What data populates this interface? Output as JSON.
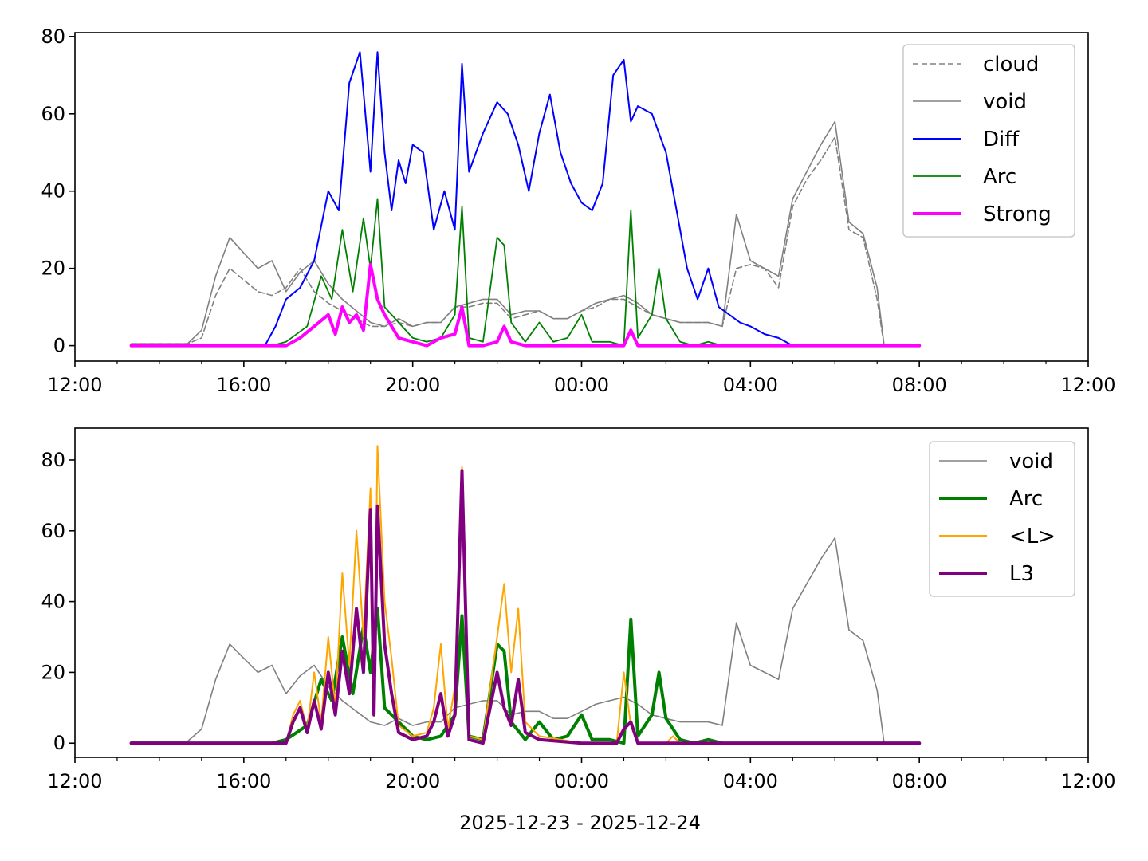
{
  "chart_data": [
    {
      "type": "line",
      "ylim": [
        -4,
        81
      ],
      "yticks": [
        0,
        20,
        40,
        60,
        80
      ],
      "xlim": [
        "2025-12-23 12:00",
        "2025-12-24 12:00"
      ],
      "xticks": [
        "12:00",
        "16:00",
        "20:00",
        "00:00",
        "04:00",
        "08:00",
        "12:00"
      ],
      "xlabel": "",
      "legend": "top-right",
      "series": [
        {
          "name": "cloud",
          "color": "#808080",
          "style": "dashed",
          "width": 1.6,
          "x": [
            "13:20",
            "14:00",
            "14:40",
            "15:00",
            "15:20",
            "15:40",
            "16:00",
            "16:20",
            "16:40",
            "17:00",
            "17:20",
            "17:40",
            "18:00",
            "18:20",
            "18:40",
            "19:00",
            "19:20",
            "19:40",
            "20:00",
            "20:20",
            "20:40",
            "21:00",
            "21:20",
            "21:40",
            "22:00",
            "22:20",
            "22:40",
            "23:00",
            "23:20",
            "23:40",
            "00:00",
            "00:20",
            "00:40",
            "01:00",
            "01:20",
            "01:40",
            "02:00",
            "02:20",
            "02:40",
            "03:00",
            "03:20",
            "03:40",
            "04:00",
            "04:20",
            "04:40",
            "05:00",
            "05:20",
            "05:40",
            "06:00",
            "06:20",
            "06:40",
            "07:00",
            "07:10",
            "07:30",
            "08:00"
          ],
          "y": [
            0.5,
            0.5,
            0.5,
            2,
            13,
            20,
            17,
            14,
            13,
            15,
            20,
            14,
            11,
            9,
            7,
            5,
            5,
            6,
            5,
            6,
            6,
            10,
            10,
            11,
            11,
            7,
            8,
            9,
            7,
            7,
            9,
            10,
            12,
            12,
            10,
            8,
            7,
            6,
            6,
            6,
            5,
            20,
            21,
            20,
            15,
            36,
            43,
            48,
            54,
            30,
            28,
            12,
            0,
            0,
            0
          ]
        },
        {
          "name": "void",
          "color": "#808080",
          "style": "solid",
          "width": 1.6,
          "x": [
            "13:20",
            "14:00",
            "14:40",
            "15:00",
            "15:20",
            "15:40",
            "16:00",
            "16:20",
            "16:40",
            "17:00",
            "17:20",
            "17:40",
            "18:00",
            "18:20",
            "18:40",
            "19:00",
            "19:20",
            "19:40",
            "20:00",
            "20:20",
            "20:40",
            "21:00",
            "21:20",
            "21:40",
            "22:00",
            "22:20",
            "22:40",
            "23:00",
            "23:20",
            "23:40",
            "00:00",
            "00:20",
            "00:40",
            "01:00",
            "01:20",
            "01:40",
            "02:00",
            "02:20",
            "02:40",
            "03:00",
            "03:20",
            "03:40",
            "04:00",
            "04:20",
            "04:40",
            "05:00",
            "05:20",
            "05:40",
            "06:00",
            "06:20",
            "06:40",
            "07:00",
            "07:10",
            "07:30",
            "08:00"
          ],
          "y": [
            0.5,
            0.5,
            0.5,
            4,
            18,
            28,
            24,
            20,
            22,
            14,
            19,
            22,
            16,
            12,
            9,
            6,
            5,
            7,
            5,
            6,
            6,
            10,
            11,
            12,
            12,
            8,
            9,
            9,
            7,
            7,
            9,
            11,
            12,
            13,
            11,
            8,
            7,
            6,
            6,
            6,
            5,
            34,
            22,
            20,
            18,
            38,
            45,
            52,
            58,
            32,
            29,
            15,
            0,
            0,
            0
          ]
        },
        {
          "name": "Diff",
          "color": "#0000ff",
          "style": "solid",
          "width": 2,
          "x": [
            "13:20",
            "16:00",
            "16:30",
            "16:45",
            "17:00",
            "17:20",
            "17:40",
            "18:00",
            "18:15",
            "18:30",
            "18:45",
            "19:00",
            "19:10",
            "19:20",
            "19:30",
            "19:40",
            "19:50",
            "20:00",
            "20:15",
            "20:30",
            "20:45",
            "21:00",
            "21:10",
            "21:20",
            "21:40",
            "22:00",
            "22:15",
            "22:30",
            "22:45",
            "23:00",
            "23:15",
            "23:30",
            "23:45",
            "00:00",
            "00:15",
            "00:30",
            "00:45",
            "01:00",
            "01:10",
            "01:20",
            "01:40",
            "02:00",
            "02:15",
            "02:30",
            "02:45",
            "03:00",
            "03:15",
            "03:30",
            "03:45",
            "04:00",
            "04:20",
            "04:40",
            "05:00",
            "08:00"
          ],
          "y": [
            0,
            0,
            0,
            5,
            12,
            15,
            22,
            40,
            35,
            68,
            76,
            45,
            76,
            50,
            35,
            48,
            42,
            52,
            50,
            30,
            40,
            30,
            73,
            45,
            55,
            63,
            60,
            52,
            40,
            55,
            65,
            50,
            42,
            37,
            35,
            42,
            70,
            74,
            58,
            62,
            60,
            50,
            35,
            20,
            12,
            20,
            10,
            8,
            6,
            5,
            3,
            2,
            0,
            0
          ]
        },
        {
          "name": "Arc",
          "color": "#008000",
          "style": "solid",
          "width": 1.8,
          "x": [
            "13:20",
            "16:40",
            "17:00",
            "17:30",
            "17:50",
            "18:05",
            "18:20",
            "18:35",
            "18:50",
            "19:00",
            "19:10",
            "19:20",
            "19:40",
            "20:00",
            "20:20",
            "20:40",
            "21:00",
            "21:10",
            "21:20",
            "21:40",
            "22:00",
            "22:10",
            "22:20",
            "22:40",
            "23:00",
            "23:20",
            "23:40",
            "00:00",
            "00:15",
            "00:40",
            "01:00",
            "01:10",
            "01:20",
            "01:40",
            "01:50",
            "02:00",
            "02:20",
            "02:40",
            "03:00",
            "03:20",
            "03:40",
            "08:00"
          ],
          "y": [
            0,
            0,
            1,
            5,
            18,
            12,
            30,
            14,
            33,
            20,
            38,
            10,
            6,
            2,
            1,
            2,
            8,
            36,
            2,
            1,
            28,
            26,
            6,
            1,
            6,
            1,
            2,
            8,
            1,
            1,
            0,
            35,
            2,
            8,
            20,
            7,
            1,
            0,
            1,
            0,
            0,
            0
          ]
        },
        {
          "name": "Strong",
          "color": "#ff00ff",
          "style": "solid",
          "width": 4,
          "x": [
            "13:20",
            "17:00",
            "17:20",
            "17:40",
            "18:00",
            "18:10",
            "18:20",
            "18:30",
            "18:40",
            "18:50",
            "19:00",
            "19:10",
            "19:20",
            "19:40",
            "20:00",
            "20:20",
            "20:40",
            "21:00",
            "21:10",
            "21:20",
            "21:40",
            "22:00",
            "22:10",
            "22:20",
            "22:40",
            "23:00",
            "01:00",
            "01:10",
            "01:20",
            "08:00"
          ],
          "y": [
            0,
            0,
            2,
            5,
            8,
            3,
            10,
            6,
            8,
            4,
            21,
            12,
            8,
            2,
            1,
            0,
            2,
            3,
            10,
            0,
            0,
            1,
            5,
            1,
            0,
            0,
            0,
            4,
            0,
            0
          ]
        }
      ]
    },
    {
      "type": "line",
      "ylim": [
        -4,
        89
      ],
      "yticks": [
        0,
        20,
        40,
        60,
        80
      ],
      "xlim": [
        "2025-12-23 12:00",
        "2025-12-24 12:00"
      ],
      "xticks": [
        "12:00",
        "16:00",
        "20:00",
        "00:00",
        "04:00",
        "08:00",
        "12:00"
      ],
      "xlabel": "2025-12-23 - 2025-12-24",
      "legend": "top-right",
      "series": [
        {
          "name": "void",
          "color": "#808080",
          "style": "solid",
          "width": 1.6,
          "x": [
            "13:20",
            "14:00",
            "14:40",
            "15:00",
            "15:20",
            "15:40",
            "16:00",
            "16:20",
            "16:40",
            "17:00",
            "17:20",
            "17:40",
            "18:00",
            "18:20",
            "18:40",
            "19:00",
            "19:20",
            "19:40",
            "20:00",
            "20:20",
            "20:40",
            "21:00",
            "21:20",
            "21:40",
            "22:00",
            "22:20",
            "22:40",
            "23:00",
            "23:20",
            "23:40",
            "00:00",
            "00:20",
            "00:40",
            "01:00",
            "01:20",
            "01:40",
            "02:00",
            "02:20",
            "02:40",
            "03:00",
            "03:20",
            "03:40",
            "04:00",
            "04:20",
            "04:40",
            "05:00",
            "05:20",
            "05:40",
            "06:00",
            "06:20",
            "06:40",
            "07:00",
            "07:10",
            "07:30",
            "08:00"
          ],
          "y": [
            0.5,
            0.5,
            0.5,
            4,
            18,
            28,
            24,
            20,
            22,
            14,
            19,
            22,
            16,
            12,
            9,
            6,
            5,
            7,
            5,
            6,
            6,
            10,
            11,
            12,
            12,
            8,
            9,
            9,
            7,
            7,
            9,
            11,
            12,
            13,
            11,
            8,
            7,
            6,
            6,
            6,
            5,
            34,
            22,
            20,
            18,
            38,
            45,
            52,
            58,
            32,
            29,
            15,
            0,
            0,
            0
          ]
        },
        {
          "name": "Arc",
          "color": "#008000",
          "style": "solid",
          "width": 4,
          "x": [
            "13:20",
            "16:40",
            "17:00",
            "17:30",
            "17:50",
            "18:05",
            "18:20",
            "18:35",
            "18:50",
            "19:00",
            "19:10",
            "19:20",
            "19:40",
            "20:00",
            "20:20",
            "20:40",
            "21:00",
            "21:10",
            "21:20",
            "21:40",
            "22:00",
            "22:10",
            "22:20",
            "22:40",
            "23:00",
            "23:20",
            "23:40",
            "00:00",
            "00:15",
            "00:40",
            "01:00",
            "01:10",
            "01:20",
            "01:40",
            "01:50",
            "02:00",
            "02:20",
            "02:40",
            "03:00",
            "03:20",
            "03:40",
            "08:00"
          ],
          "y": [
            0,
            0,
            1,
            5,
            18,
            12,
            30,
            14,
            33,
            20,
            38,
            10,
            6,
            2,
            1,
            2,
            8,
            36,
            2,
            1,
            28,
            26,
            6,
            1,
            6,
            1,
            2,
            8,
            1,
            1,
            0,
            35,
            2,
            8,
            20,
            7,
            1,
            0,
            1,
            0,
            0,
            0
          ]
        },
        {
          "name": "<L>",
          "color": "#ffa500",
          "style": "solid",
          "width": 2,
          "x": [
            "13:20",
            "17:00",
            "17:10",
            "17:20",
            "17:30",
            "17:40",
            "17:50",
            "18:00",
            "18:10",
            "18:20",
            "18:30",
            "18:40",
            "18:50",
            "19:00",
            "19:05",
            "19:10",
            "19:20",
            "19:30",
            "19:40",
            "20:00",
            "20:20",
            "20:30",
            "20:40",
            "20:50",
            "21:00",
            "21:10",
            "21:20",
            "21:40",
            "22:00",
            "22:10",
            "22:20",
            "22:30",
            "22:40",
            "23:00",
            "00:00",
            "00:50",
            "01:00",
            "01:10",
            "01:20",
            "02:00",
            "02:10",
            "02:20",
            "08:00"
          ],
          "y": [
            0,
            0,
            8,
            12,
            4,
            20,
            6,
            30,
            10,
            48,
            22,
            60,
            30,
            72,
            10,
            84,
            40,
            24,
            5,
            2,
            3,
            10,
            28,
            4,
            16,
            78,
            2,
            1,
            30,
            45,
            20,
            38,
            6,
            2,
            0,
            0,
            20,
            5,
            0,
            0,
            2,
            0,
            0
          ]
        },
        {
          "name": "L3",
          "color": "#800080",
          "style": "solid",
          "width": 4,
          "x": [
            "13:20",
            "17:00",
            "17:10",
            "17:20",
            "17:30",
            "17:40",
            "17:50",
            "18:00",
            "18:10",
            "18:20",
            "18:30",
            "18:40",
            "18:50",
            "19:00",
            "19:05",
            "19:10",
            "19:20",
            "19:30",
            "19:40",
            "20:00",
            "20:20",
            "20:30",
            "20:40",
            "20:50",
            "21:00",
            "21:10",
            "21:20",
            "21:40",
            "22:00",
            "22:10",
            "22:20",
            "22:30",
            "22:40",
            "23:00",
            "00:00",
            "00:50",
            "01:00",
            "01:10",
            "01:20",
            "02:00",
            "08:00"
          ],
          "y": [
            0,
            0,
            6,
            10,
            3,
            12,
            4,
            20,
            8,
            26,
            14,
            38,
            20,
            66,
            8,
            67,
            28,
            14,
            3,
            1,
            2,
            6,
            14,
            2,
            8,
            77,
            1,
            0,
            20,
            10,
            5,
            18,
            3,
            1,
            0,
            0,
            4,
            6,
            0,
            0,
            0
          ]
        }
      ]
    }
  ]
}
